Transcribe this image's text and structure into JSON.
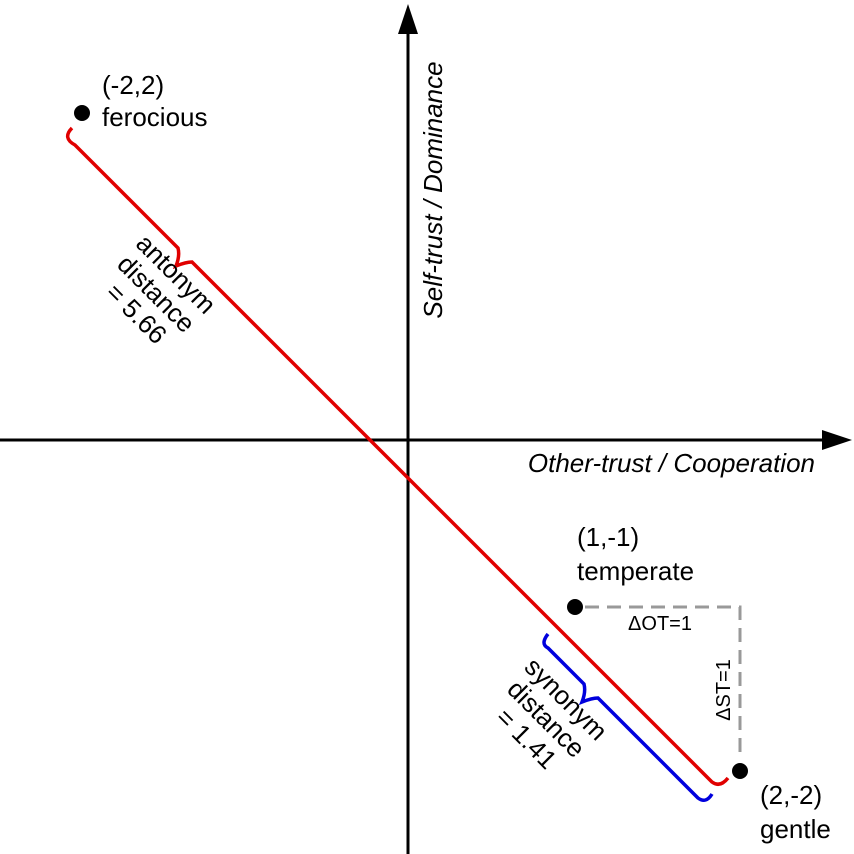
{
  "axes": {
    "x_label": "Other-trust / Cooperation",
    "y_label": "Self-trust / Dominance"
  },
  "nodes": [
    {
      "coords": "(-2,2)",
      "label": "ferocious"
    },
    {
      "coords": "(1,-1)",
      "label": "temperate"
    },
    {
      "coords": "(2,-2)",
      "label": "gentle"
    }
  ],
  "distances": [
    {
      "lines": [
        "antonym",
        "distance",
        "= 5.66"
      ]
    },
    {
      "lines": [
        "synonym",
        "distance",
        "= 1.41"
      ]
    }
  ],
  "deltas": [
    "ΔOT=1",
    "ΔST=1"
  ]
}
